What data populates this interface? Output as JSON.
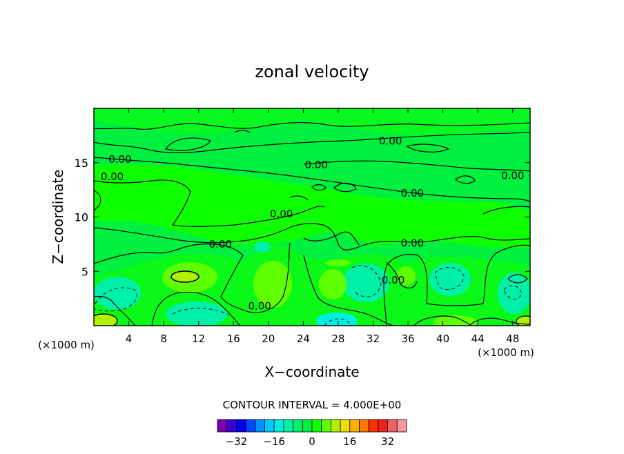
{
  "chart_data": {
    "type": "heatmap",
    "title": "zonal velocity",
    "xlabel": "X−coordinate",
    "ylabel": "Z−coordinate",
    "x_unit_left": "(×1000 m)",
    "x_unit_right": "(×1000 m)",
    "xlim": [
      0,
      50
    ],
    "ylim": [
      0,
      20
    ],
    "x_ticks": [
      "4",
      "8",
      "12",
      "16",
      "20",
      "24",
      "28",
      "32",
      "36",
      "40",
      "44",
      "48"
    ],
    "y_ticks": [
      "5",
      "10",
      "15"
    ],
    "contour_interval_text": "CONTOUR INTERVAL = 4.000E+00",
    "contour_labels": [
      {
        "text": "0.00",
        "x": 34.0,
        "z": 17.0
      },
      {
        "text": "0.00",
        "x": 25.5,
        "z": 14.8
      },
      {
        "text": "0.00",
        "x": 3.0,
        "z": 15.3
      },
      {
        "text": "0.00",
        "x": 2.1,
        "z": 13.7
      },
      {
        "text": "0.00",
        "x": 48.0,
        "z": 13.8
      },
      {
        "text": "0.00",
        "x": 36.5,
        "z": 12.2
      },
      {
        "text": "0.00",
        "x": 21.5,
        "z": 10.3
      },
      {
        "text": "0.00",
        "x": 14.5,
        "z": 7.5
      },
      {
        "text": "0.00",
        "x": 36.5,
        "z": 7.6
      },
      {
        "text": "0.00",
        "x": 19.0,
        "z": 1.8
      },
      {
        "text": "0.00",
        "x": 34.3,
        "z": 4.2
      }
    ],
    "colorbar": {
      "ticks": [
        "−32",
        "−16",
        "0",
        "16",
        "32"
      ],
      "tick_values": [
        -32,
        -16,
        0,
        16,
        32
      ],
      "min": -40,
      "max": 40,
      "colors": [
        "#7a00b0",
        "#3a00d8",
        "#0000f0",
        "#0048ff",
        "#0090ff",
        "#00c8ff",
        "#00f0e0",
        "#00f0a8",
        "#00f070",
        "#00f040",
        "#10ff00",
        "#60ff00",
        "#b0f000",
        "#f0e000",
        "#ffb000",
        "#ff7800",
        "#ff3000",
        "#f02020",
        "#f06060",
        "#f89898"
      ]
    }
  }
}
